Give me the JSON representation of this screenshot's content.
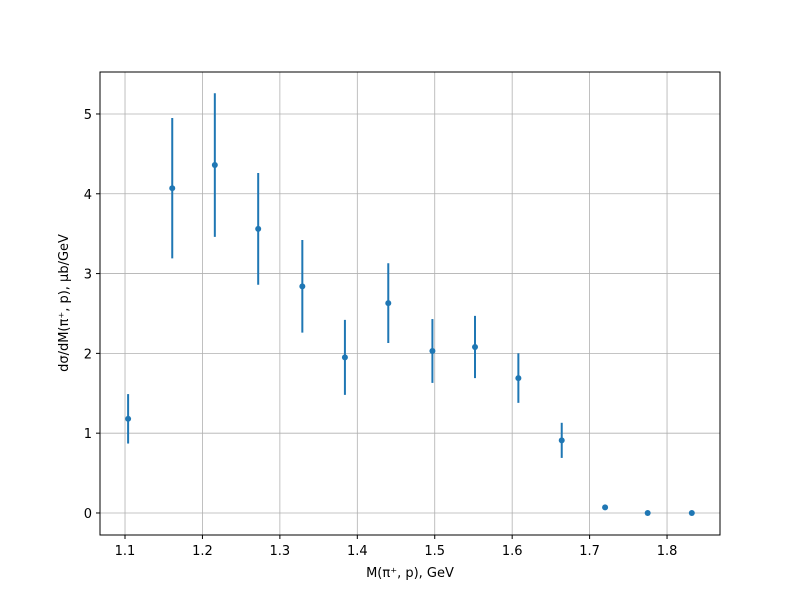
{
  "chart_data": {
    "type": "errorbar",
    "xlabel": "M(π⁺, p), GeV",
    "ylabel": "dσ/dM(π⁺, p), μb/GeV",
    "x": [
      1.104,
      1.161,
      1.216,
      1.272,
      1.329,
      1.384,
      1.44,
      1.497,
      1.552,
      1.608,
      1.664,
      1.72,
      1.775,
      1.832
    ],
    "values": [
      1.18,
      4.07,
      4.36,
      3.56,
      2.84,
      1.95,
      2.63,
      2.03,
      2.08,
      1.69,
      0.91,
      0.07,
      0,
      0
    ],
    "errors": [
      0.31,
      0.88,
      0.9,
      0.7,
      0.58,
      0.47,
      0.5,
      0.4,
      0.39,
      0.31,
      0.22,
      0.02,
      0,
      0
    ],
    "color": "#1f77b4",
    "xlim": [
      1.0677,
      1.8684
    ],
    "ylim": [
      -0.276,
      5.526
    ],
    "xticks": [
      1.1,
      1.2,
      1.3,
      1.4,
      1.5,
      1.6,
      1.7,
      1.8
    ],
    "yticks": [
      0,
      1,
      2,
      3,
      4,
      5
    ],
    "grid": true
  }
}
